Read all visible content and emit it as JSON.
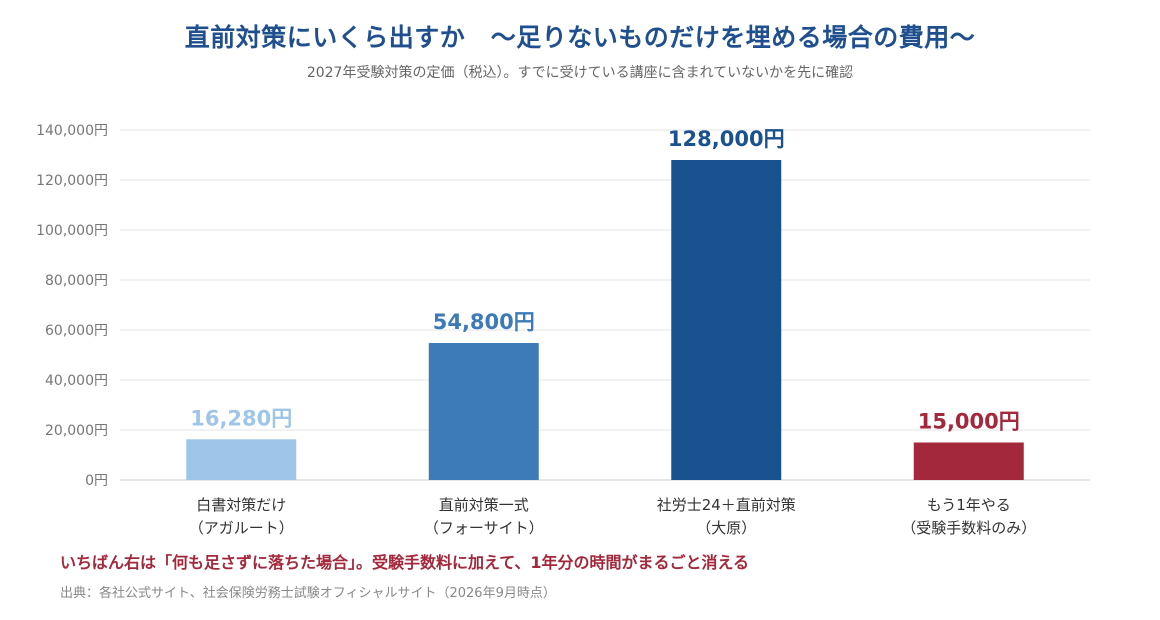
{
  "header": {
    "title": "直前対策にいくら出すか　〜足りないものだけを埋める場合の費用〜",
    "subtitle": "2027年受験対策の定価（税込）。すでに受けている講座に含まれていないかを先に確認"
  },
  "footer": {
    "note": "いちばん右は「何も足さずに落ちた場合」。受験手数料に加えて、1年分の時間がまるごと消える",
    "source": "出典：各社公式サイト、社会保険労務士試験オフィシャルサイト（2026年9月時点）"
  },
  "chart_data": {
    "type": "bar",
    "title": "直前対策にいくら出すか　〜足りないものだけを埋める場合の費用〜",
    "subtitle": "2027年受験対策の定価（税込）。すでに受けている講座に含まれていないかを先に確認",
    "xlabel": "",
    "ylabel": "",
    "ylim": [
      0,
      140000
    ],
    "yticks": [
      0,
      20000,
      40000,
      60000,
      80000,
      100000,
      120000,
      140000
    ],
    "ytick_labels": [
      "0円",
      "20,000円",
      "40,000円",
      "60,000円",
      "80,000円",
      "100,000円",
      "120,000円",
      "140,000円"
    ],
    "grid": true,
    "categories": [
      [
        "白書対策だけ",
        "（アガルート）"
      ],
      [
        "直前対策一式",
        "（フォーサイト）"
      ],
      [
        "社労士24＋直前対策",
        "（大原）"
      ],
      [
        "もう1年やる",
        "（受験手数料のみ）"
      ]
    ],
    "values": [
      16280,
      54800,
      128000,
      15000
    ],
    "value_labels": [
      "16,280円",
      "54,800円",
      "128,000円",
      "15,000円"
    ],
    "colors": [
      "#9fc5e8",
      "#3d7ab8",
      "#1a528f",
      "#a3283b"
    ]
  }
}
